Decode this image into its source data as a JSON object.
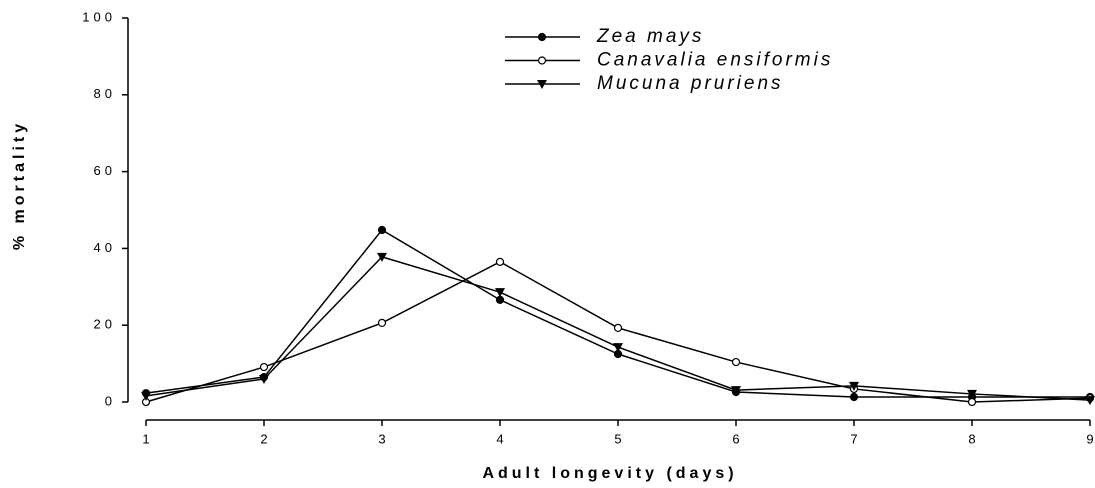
{
  "chart_data": {
    "type": "line",
    "xlabel": "Adult longevity (days)",
    "ylabel": "% mortality",
    "x": [
      1,
      2,
      3,
      4,
      5,
      6,
      7,
      8,
      9
    ],
    "xlim": [
      1,
      9
    ],
    "xticks": [
      1,
      2,
      3,
      4,
      5,
      6,
      7,
      8,
      9
    ],
    "ylim": [
      0,
      100
    ],
    "yticks": [
      0,
      20,
      40,
      60,
      80,
      100
    ],
    "legend": "top",
    "series": [
      {
        "name": "Zea mays",
        "color": "#000000",
        "marker": "filled-circle",
        "values": [
          2.3,
          6.5,
          44.8,
          26.6,
          12.5,
          2.6,
          1.3,
          1.3,
          1.3
        ]
      },
      {
        "name": "Canavalia ensiformis",
        "color": "#000000",
        "marker": "open-circle",
        "values": [
          0,
          9.1,
          20.6,
          36.5,
          19.3,
          10.4,
          3.4,
          0,
          1
        ]
      },
      {
        "name": "Mucuna pruriens",
        "color": "#000000",
        "marker": "triangle",
        "values": [
          1.6,
          6,
          37.8,
          28.6,
          14.3,
          3.1,
          4.2,
          2.1,
          0.5
        ]
      }
    ]
  }
}
